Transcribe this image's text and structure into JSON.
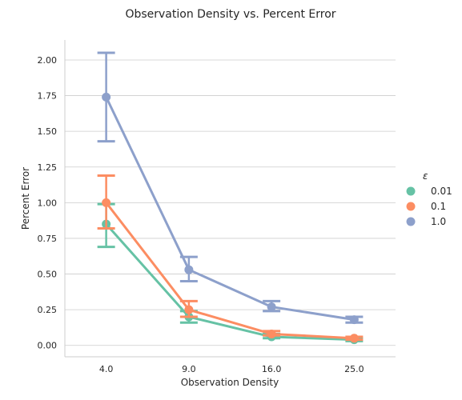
{
  "chart_data": {
    "type": "line",
    "title": "Observation Density vs. Percent Error",
    "xlabel": "Observation Density",
    "ylabel": "Percent Error",
    "categories": [
      "4.0",
      "9.0",
      "16.0",
      "25.0"
    ],
    "ylim": [
      -0.08,
      2.14
    ],
    "yticks": [
      0.0,
      0.25,
      0.5,
      0.75,
      1.0,
      1.25,
      1.5,
      1.75,
      2.0
    ],
    "ytick_labels": [
      "0.00",
      "0.25",
      "0.50",
      "0.75",
      "1.00",
      "1.25",
      "1.50",
      "1.75",
      "2.00"
    ],
    "grid": "horizontal",
    "legend": {
      "title": "ε",
      "position": "right"
    },
    "series": [
      {
        "name": "0.01",
        "color": "#66c2a5",
        "values": [
          0.85,
          0.2,
          0.06,
          0.04
        ],
        "err_low": [
          0.69,
          0.16,
          0.05,
          0.03
        ],
        "err_high": [
          0.99,
          0.24,
          0.08,
          0.05
        ]
      },
      {
        "name": "0.1",
        "color": "#fc8d62",
        "values": [
          1.0,
          0.25,
          0.08,
          0.05
        ],
        "err_low": [
          0.82,
          0.2,
          0.07,
          0.04
        ],
        "err_high": [
          1.19,
          0.31,
          0.1,
          0.06
        ]
      },
      {
        "name": "1.0",
        "color": "#8da0cb",
        "values": [
          1.74,
          0.53,
          0.27,
          0.18
        ],
        "err_low": [
          1.43,
          0.45,
          0.24,
          0.16
        ],
        "err_high": [
          2.05,
          0.62,
          0.31,
          0.2
        ]
      }
    ]
  }
}
